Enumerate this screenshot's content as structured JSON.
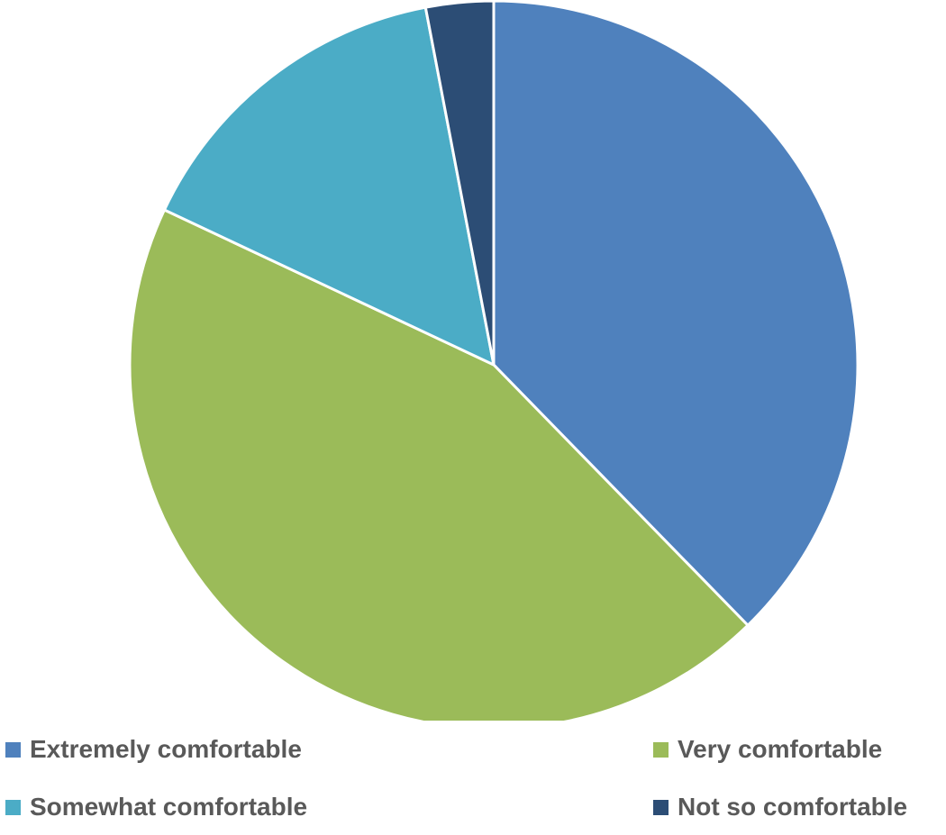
{
  "chart_data": {
    "type": "pie",
    "title": "",
    "start_angle_deg": 0,
    "direction": "clockwise",
    "slices": [
      {
        "label": "Extremely comfortable",
        "value": 37.7,
        "color": "#4F81BD"
      },
      {
        "label": "Very comfortable",
        "value": 44.3,
        "color": "#9BBB59"
      },
      {
        "label": "Somewhat comfortable",
        "value": 15.0,
        "color": "#4BACC6"
      },
      {
        "label": "Not so comfortable",
        "value": 3.0,
        "color": "#2C4D75"
      }
    ],
    "legend_position": "bottom"
  },
  "legend": {
    "items": [
      {
        "label": "Extremely comfortable",
        "color": "#4F81BD"
      },
      {
        "label": "Very comfortable",
        "color": "#9BBB59"
      },
      {
        "label": "Somewhat comfortable",
        "color": "#4BACC6"
      },
      {
        "label": "Not so comfortable",
        "color": "#2C4D75"
      }
    ]
  }
}
